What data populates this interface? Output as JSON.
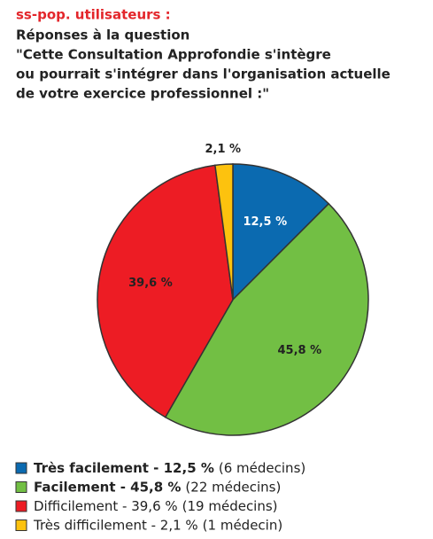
{
  "chart_data": {
    "type": "pie",
    "title": "ss-pop. utilisateurs :",
    "subtitle_lines": [
      "Réponses à la question",
      "\"Cette Consultation Approfondie s'intègre",
      "ou pourrait s'intégrer dans l'organisation actuelle",
      "de votre exercice professionnel :\""
    ],
    "categories": [
      "Très facilement - 12,5 %",
      "Facilement - 45,8 %",
      "Difficilement - 39,6 %",
      "Très difficilement - 2,1 %"
    ],
    "notes": [
      "(6 médecins)",
      "(22 médecins)",
      "(19 médecins)",
      "(1 médecin)"
    ],
    "bold_categories": [
      true,
      true,
      false,
      false
    ],
    "values": [
      12.5,
      45.8,
      39.6,
      2.1
    ],
    "value_labels": [
      "12,5 %",
      "45,8 %",
      "39,6 %",
      "2,1 %"
    ],
    "colors": [
      "#0b6ab0",
      "#72bf44",
      "#ed1c24",
      "#fdc20e"
    ],
    "value_label_colors": [
      "#ffffff",
      "#222222",
      "#222222",
      "#222222"
    ]
  }
}
